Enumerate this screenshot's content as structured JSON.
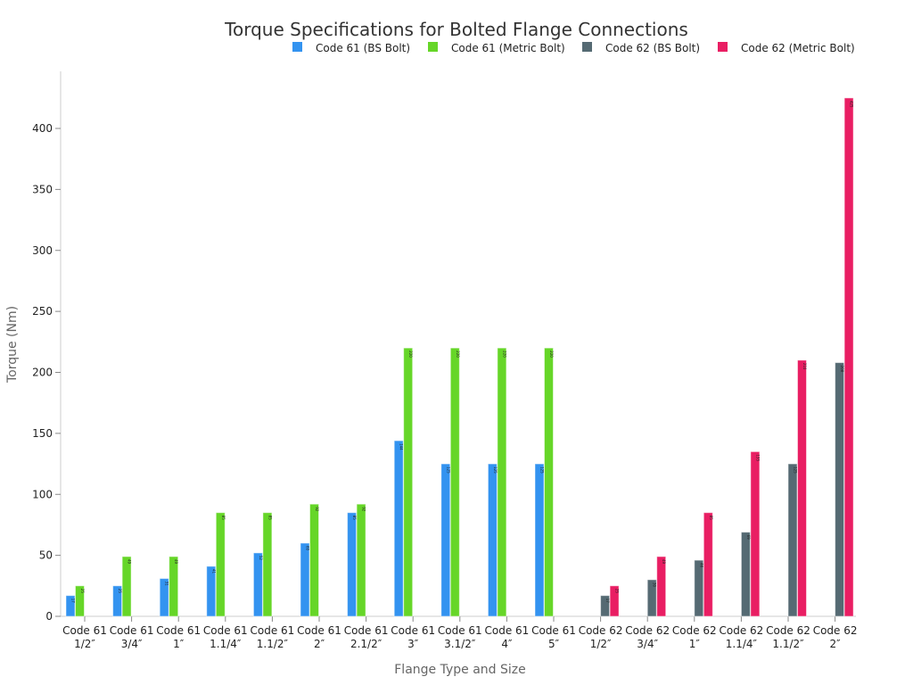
{
  "chart_data": {
    "type": "bar",
    "title": "Torque Specifications for Bolted Flange Connections",
    "xlabel": "Flange Type and Size",
    "ylabel": "Torque (Nm)",
    "ylim": [
      0,
      445
    ],
    "yticks": [
      0,
      50,
      100,
      150,
      200,
      250,
      300,
      350,
      400
    ],
    "grid": false,
    "legend_position": "top-right",
    "categories": [
      [
        "Code 61",
        "1/2″"
      ],
      [
        "Code 61",
        "3/4″"
      ],
      [
        "Code 61",
        "1″"
      ],
      [
        "Code 61",
        "1.1/4″"
      ],
      [
        "Code 61",
        "1.1/2″"
      ],
      [
        "Code 61",
        "2″"
      ],
      [
        "Code 61",
        "2.1/2″"
      ],
      [
        "Code 61",
        "3″"
      ],
      [
        "Code 61",
        "3.1/2″"
      ],
      [
        "Code 61",
        "4″"
      ],
      [
        "Code 61",
        "5″"
      ],
      [
        "Code 62",
        "1/2″"
      ],
      [
        "Code 62",
        "3/4″"
      ],
      [
        "Code 62",
        "1″"
      ],
      [
        "Code 62",
        "1.1/4″"
      ],
      [
        "Code 62",
        "1.1/2″"
      ],
      [
        "Code 62",
        "2″"
      ]
    ],
    "series": [
      {
        "name": "Code 61 (BS Bolt)",
        "color": "#3393F0",
        "values": [
          17,
          25,
          31,
          41,
          52,
          60,
          85,
          144,
          125,
          125,
          125,
          null,
          null,
          null,
          null,
          null,
          null
        ]
      },
      {
        "name": "Code 61 (Metric Bolt)",
        "color": "#66D628",
        "values": [
          25,
          49,
          49,
          85,
          85,
          92,
          92,
          220,
          220,
          220,
          220,
          null,
          null,
          null,
          null,
          null,
          null
        ]
      },
      {
        "name": "Code 62 (BS Bolt)",
        "color": "#556A73",
        "values": [
          null,
          null,
          null,
          null,
          null,
          null,
          null,
          null,
          null,
          null,
          null,
          17,
          30,
          46,
          69,
          125,
          208
        ]
      },
      {
        "name": "Code 62 (Metric Bolt)",
        "color": "#E91E63",
        "values": [
          null,
          null,
          null,
          null,
          null,
          null,
          null,
          null,
          null,
          null,
          null,
          25,
          49,
          85,
          135,
          210,
          425
        ]
      }
    ]
  }
}
